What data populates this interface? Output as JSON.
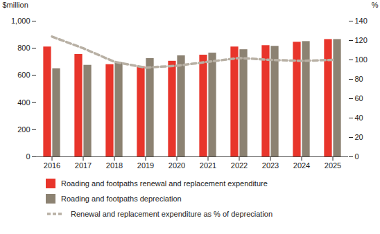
{
  "chart_data": {
    "type": "bar",
    "categories": [
      "2016",
      "2017",
      "2018",
      "2019",
      "2020",
      "2021",
      "2022",
      "2023",
      "2024",
      "2025"
    ],
    "ylabel": "$million",
    "y2label": "%",
    "ylim": [
      0,
      1000
    ],
    "yticks": [
      0,
      200,
      400,
      600,
      800,
      {
        "value": 1000,
        "label": "1,000"
      }
    ],
    "y2lim": [
      0,
      140
    ],
    "y2ticks": [
      0,
      20,
      40,
      60,
      80,
      100,
      120,
      140
    ],
    "legend": "bottom",
    "series": [
      {
        "name": "Roading and footpaths renewal and replacement expenditure",
        "type": "bar",
        "color": "#e8352b",
        "values": [
          810,
          755,
          680,
          665,
          705,
          750,
          810,
          820,
          845,
          865
        ]
      },
      {
        "name": "Roading and footpaths depreciation",
        "type": "bar",
        "color": "#8c8272",
        "values": [
          650,
          675,
          695,
          725,
          745,
          765,
          790,
          815,
          850,
          865
        ]
      },
      {
        "name": "Renewal and replacement expenditure as % of depreciation",
        "type": "line",
        "axis": "y2",
        "color": "#b8b0a4",
        "line_style": "dashed",
        "values": [
          124,
          112,
          98,
          92,
          94,
          98,
          102,
          100,
          99,
          100
        ]
      }
    ]
  }
}
